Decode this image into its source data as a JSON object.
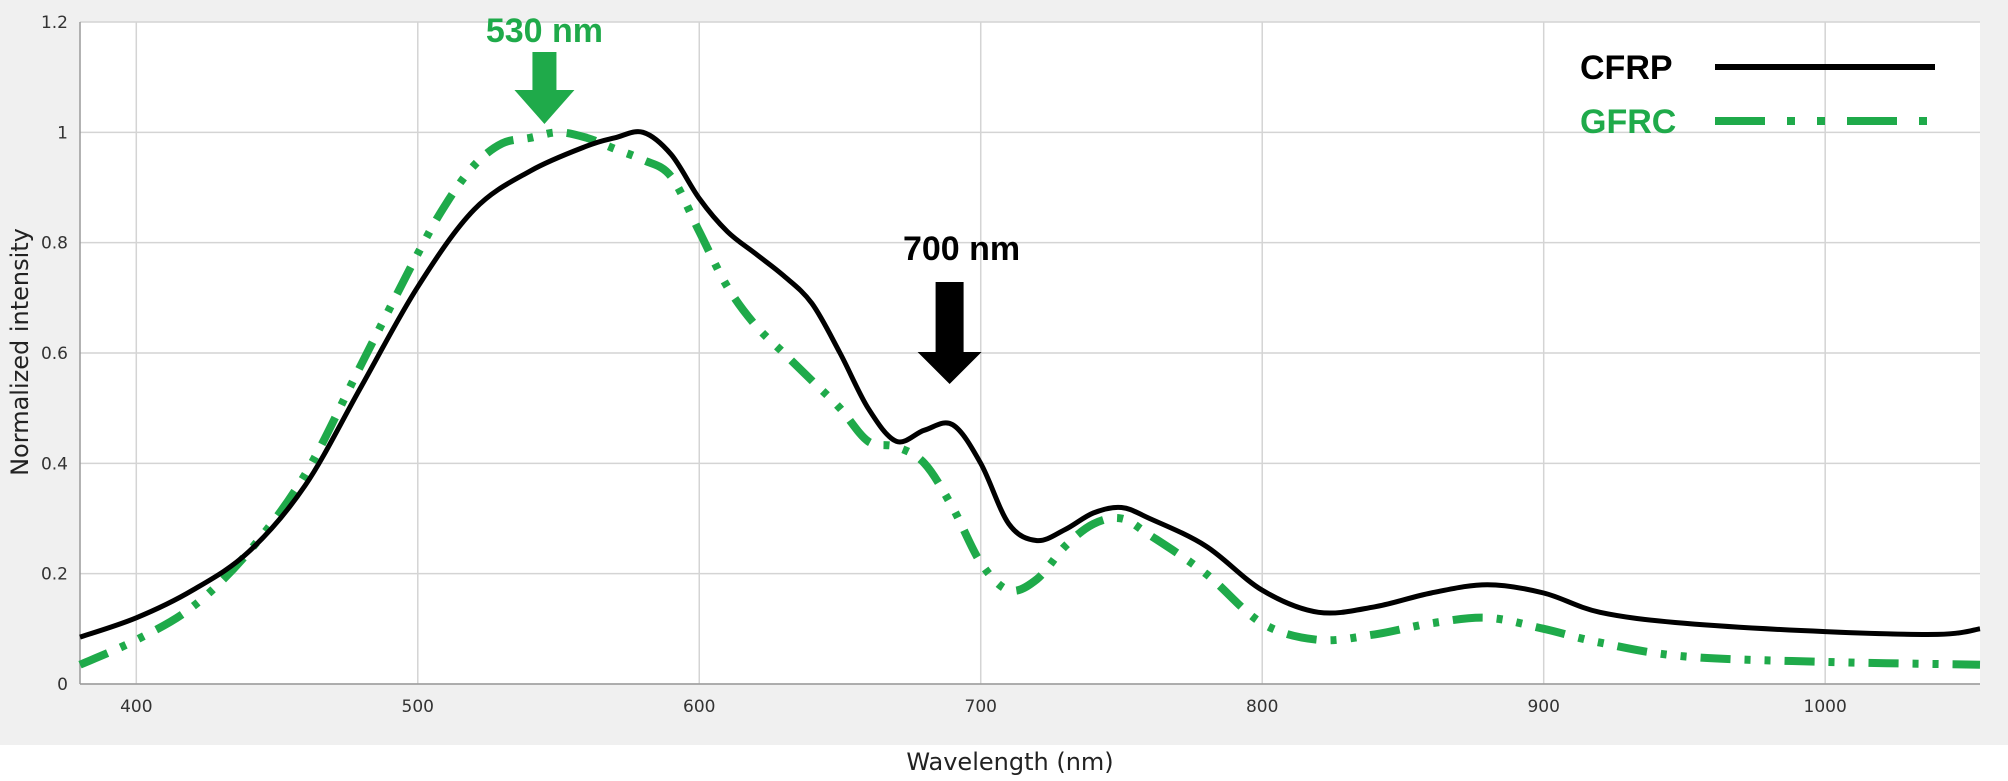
{
  "colors": {
    "cfrp": "#000000",
    "gfrc": "#1faa4a",
    "grid": "#d4d4d4",
    "plot_bg": "#ffffff",
    "frame_bg": "#f0f0f0"
  },
  "chart_data": {
    "type": "line",
    "title": "",
    "xlabel": "Wavelength (nm)",
    "ylabel": "Normalized intensity",
    "xlim": [
      380,
      1055
    ],
    "ylim": [
      0,
      1.2
    ],
    "xticks": [
      "400",
      "500",
      "600",
      "700",
      "800",
      "900",
      "1000"
    ],
    "yticks": [
      "0",
      "0.2",
      "0.4",
      "0.6",
      "0.8",
      "1",
      "1.2"
    ],
    "grid": true,
    "legend_position": "top-right",
    "series": [
      {
        "name": "CFRP",
        "style": "solid",
        "x": [
          380,
          400,
          420,
          440,
          460,
          480,
          500,
          520,
          540,
          560,
          570,
          580,
          590,
          600,
          610,
          620,
          630,
          640,
          650,
          660,
          670,
          680,
          690,
          700,
          710,
          720,
          730,
          740,
          750,
          760,
          780,
          800,
          820,
          840,
          860,
          880,
          900,
          920,
          950,
          1000,
          1040,
          1055
        ],
        "y": [
          0.085,
          0.12,
          0.17,
          0.24,
          0.36,
          0.54,
          0.72,
          0.86,
          0.93,
          0.975,
          0.99,
          1.0,
          0.96,
          0.88,
          0.82,
          0.78,
          0.74,
          0.69,
          0.6,
          0.5,
          0.44,
          0.46,
          0.47,
          0.4,
          0.29,
          0.26,
          0.28,
          0.31,
          0.32,
          0.3,
          0.25,
          0.17,
          0.13,
          0.14,
          0.165,
          0.18,
          0.165,
          0.13,
          0.11,
          0.095,
          0.09,
          0.1
        ]
      },
      {
        "name": "GFRC",
        "style": "dash-dot-dot",
        "x": [
          380,
          400,
          420,
          440,
          460,
          480,
          500,
          510,
          520,
          530,
          540,
          550,
          560,
          570,
          580,
          590,
          600,
          610,
          620,
          630,
          640,
          650,
          660,
          670,
          680,
          690,
          700,
          710,
          720,
          730,
          740,
          750,
          760,
          780,
          800,
          820,
          840,
          860,
          880,
          900,
          920,
          950,
          1000,
          1055
        ],
        "y": [
          0.035,
          0.08,
          0.14,
          0.24,
          0.38,
          0.58,
          0.78,
          0.87,
          0.94,
          0.98,
          0.99,
          1.0,
          0.99,
          0.97,
          0.95,
          0.92,
          0.82,
          0.72,
          0.65,
          0.6,
          0.55,
          0.5,
          0.44,
          0.43,
          0.4,
          0.32,
          0.22,
          0.17,
          0.19,
          0.25,
          0.29,
          0.3,
          0.27,
          0.2,
          0.11,
          0.08,
          0.09,
          0.11,
          0.12,
          0.1,
          0.075,
          0.05,
          0.04,
          0.035
        ]
      }
    ],
    "annotations": [
      {
        "id": "peak-530",
        "text": "530 nm",
        "x": 545,
        "color": "gfrc"
      },
      {
        "id": "peak-700",
        "text": "700 nm",
        "x": 690,
        "color": "cfrp"
      }
    ]
  }
}
